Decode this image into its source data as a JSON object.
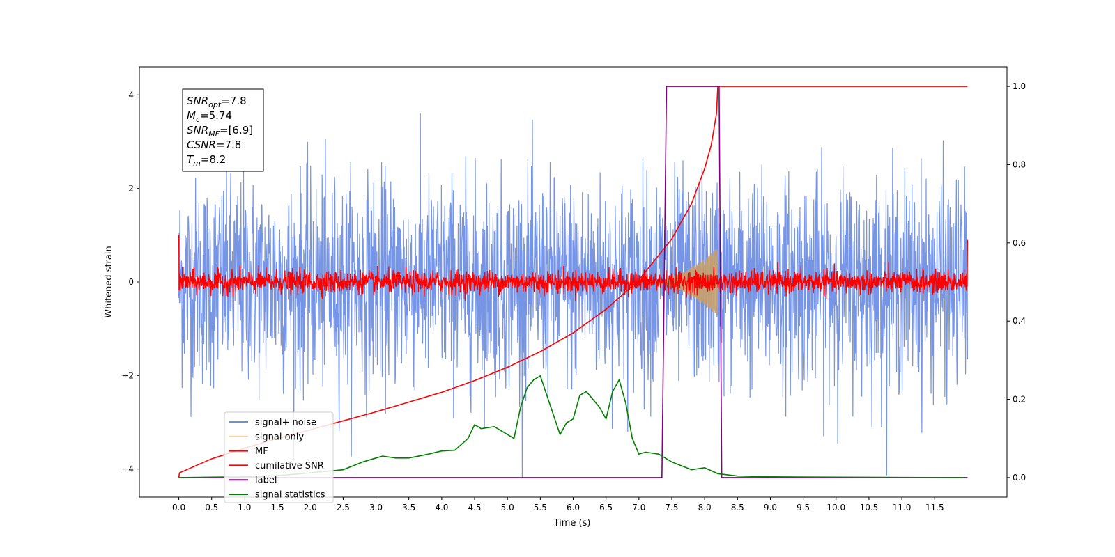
{
  "chart_data": {
    "type": "line",
    "xlabel": "Time (s)",
    "ylabel": "Whitened strain",
    "ylabel_right": "",
    "xlim": [
      -0.6,
      12.6
    ],
    "ylim": [
      -4.6,
      4.6
    ],
    "ylim_right": [
      -0.05,
      1.05
    ],
    "x_ticks": [
      "0.0",
      "0.5",
      "1.0",
      "1.5",
      "2.0",
      "2.5",
      "3.0",
      "3.5",
      "4.0",
      "4.5",
      "5.0",
      "5.5",
      "6.0",
      "6.5",
      "7.0",
      "7.5",
      "8.0",
      "8.5",
      "9.0",
      "9.5",
      "10.0",
      "10.5",
      "11.0",
      "11.5"
    ],
    "y_ticks": [
      "−4",
      "−2",
      "0",
      "2",
      "4"
    ],
    "y_ticks_right": [
      "0.0",
      "0.2",
      "0.4",
      "0.6",
      "0.8",
      "1.0"
    ],
    "grid": false,
    "legend_position": "lower-left",
    "annotation": {
      "lines": [
        {
          "main": "SNR",
          "sub": "opt",
          "rest": "=7.8"
        },
        {
          "main": "M",
          "sub": "c",
          "rest": "=5.74"
        },
        {
          "main": "SNR",
          "sub": "MF",
          "rest": "=[6.9]"
        },
        {
          "main": "CSNR",
          "sub": "",
          "rest": "=7.8"
        },
        {
          "main": "T",
          "sub": "m",
          "rest": "=8.2"
        }
      ]
    },
    "series": [
      {
        "name": "signal+ noise",
        "color": "#6f8fe6",
        "axis": "left",
        "kind": "noise",
        "x_range": [
          0.0,
          12.0
        ],
        "amplitude_rms": 1.1,
        "baseline_offset": 0.0
      },
      {
        "name": "signal only",
        "color": "#f5b865",
        "axis": "left",
        "kind": "chirp",
        "x_start": 7.0,
        "x_end": 8.2,
        "peak_amplitude": 0.75
      },
      {
        "name": "MF",
        "color": "#ff0000",
        "axis": "left",
        "kind": "noise",
        "x_range": [
          0.0,
          12.0
        ],
        "amplitude_rms": 0.12
      },
      {
        "name": "cumilative SNR",
        "color": "#ff0000",
        "axis": "right",
        "x": [
          0.0,
          0.01,
          0.5,
          1.0,
          1.5,
          2.0,
          2.5,
          3.0,
          3.5,
          4.0,
          4.5,
          5.0,
          5.5,
          6.0,
          6.5,
          7.0,
          7.5,
          7.8,
          8.0,
          8.1,
          8.18,
          8.2,
          12.0
        ],
        "y": [
          0.0,
          0.012,
          0.048,
          0.075,
          0.1,
          0.122,
          0.145,
          0.168,
          0.193,
          0.218,
          0.248,
          0.282,
          0.322,
          0.37,
          0.43,
          0.505,
          0.61,
          0.7,
          0.79,
          0.85,
          0.93,
          1.0,
          1.0
        ]
      },
      {
        "name": "label",
        "color": "#800080",
        "axis": "right",
        "x": [
          0.0,
          7.35,
          7.42,
          8.22,
          8.26,
          12.0
        ],
        "y": [
          0.0,
          0.0,
          1.0,
          1.0,
          0.0,
          0.0
        ]
      },
      {
        "name": "signal statistics",
        "color": "#008000",
        "axis": "right",
        "x": [
          0.0,
          0.5,
          1.0,
          1.5,
          2.0,
          2.5,
          2.8,
          3.0,
          3.1,
          3.3,
          3.5,
          3.8,
          4.0,
          4.2,
          4.4,
          4.5,
          4.6,
          4.8,
          5.0,
          5.1,
          5.2,
          5.3,
          5.4,
          5.5,
          5.6,
          5.8,
          5.9,
          6.0,
          6.1,
          6.2,
          6.3,
          6.4,
          6.5,
          6.6,
          6.7,
          6.8,
          6.9,
          7.0,
          7.1,
          7.3,
          7.5,
          7.8,
          8.0,
          8.2,
          8.5,
          9.0,
          10.0,
          11.0,
          11.95
        ],
        "y": [
          0.0,
          0.001,
          0.002,
          0.005,
          0.012,
          0.02,
          0.04,
          0.05,
          0.055,
          0.05,
          0.05,
          0.06,
          0.068,
          0.07,
          0.1,
          0.135,
          0.125,
          0.13,
          0.11,
          0.1,
          0.18,
          0.23,
          0.25,
          0.26,
          0.21,
          0.11,
          0.14,
          0.15,
          0.21,
          0.22,
          0.2,
          0.18,
          0.15,
          0.22,
          0.25,
          0.19,
          0.1,
          0.06,
          0.065,
          0.06,
          0.04,
          0.02,
          0.025,
          0.01,
          0.004,
          0.002,
          0.001,
          0.0005,
          0.0
        ]
      }
    ]
  }
}
